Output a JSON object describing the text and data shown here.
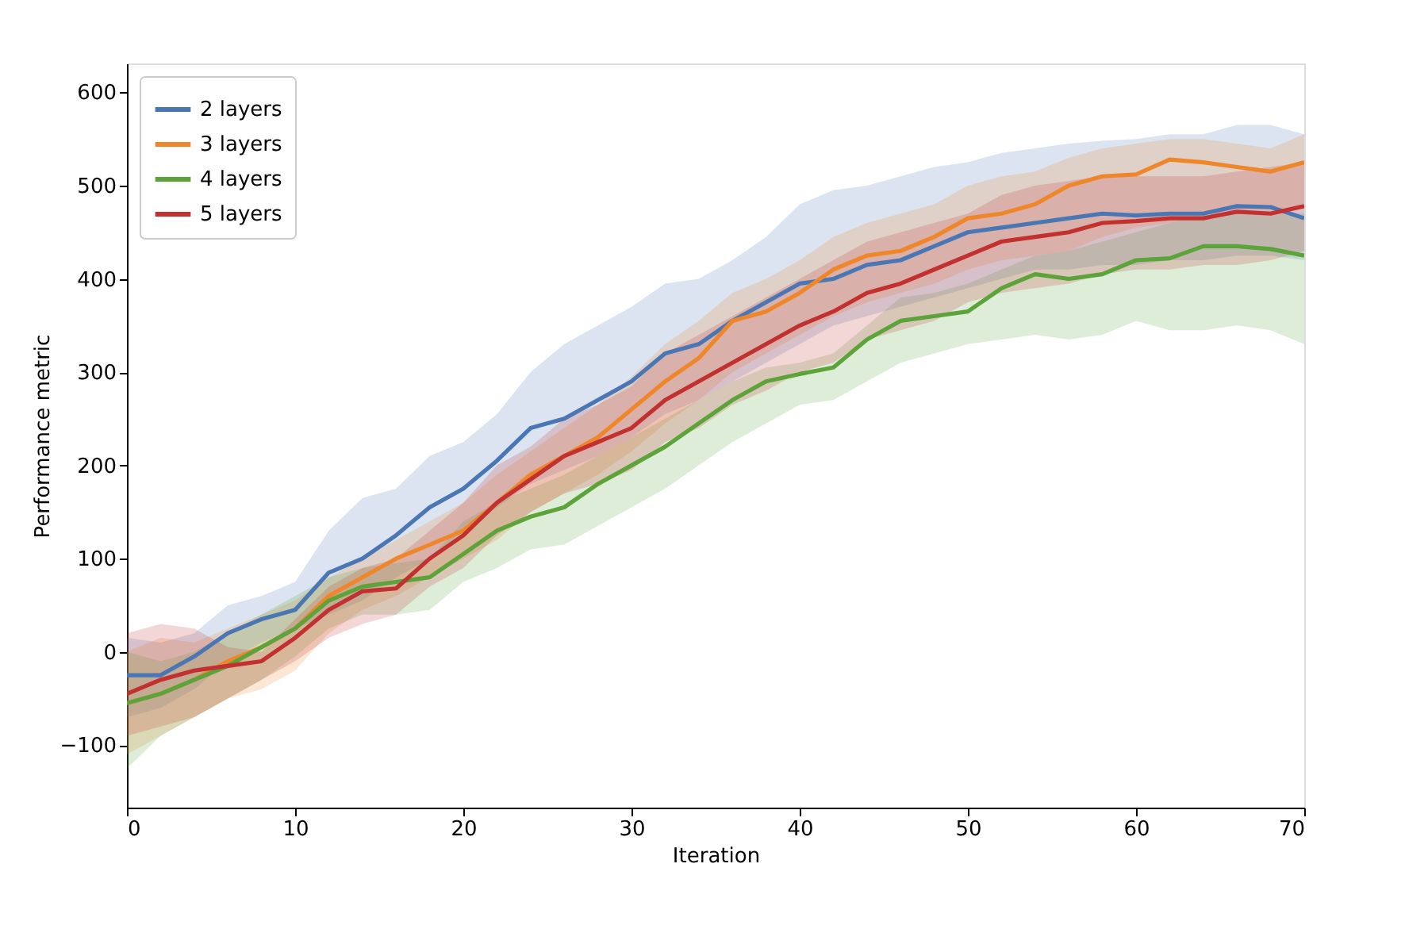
{
  "chart_data": {
    "type": "line",
    "xlabel": "Iteration",
    "ylabel": "Performance metric",
    "x": [
      0,
      2,
      4,
      6,
      8,
      10,
      12,
      14,
      16,
      18,
      20,
      22,
      24,
      26,
      28,
      30,
      32,
      34,
      36,
      38,
      40,
      42,
      44,
      46,
      48,
      50,
      52,
      54,
      56,
      58,
      60,
      62,
      64,
      66,
      68,
      70
    ],
    "xlim": [
      0,
      70
    ],
    "xticks": [
      0,
      10,
      20,
      30,
      40,
      50,
      60,
      70
    ],
    "ylim": [
      -167,
      631
    ],
    "yticks": [
      -100,
      0,
      100,
      200,
      300,
      400,
      500,
      600
    ],
    "grid": false,
    "legend": "top left",
    "series": [
      {
        "name": "2 layers",
        "color": "#4a77b4",
        "values": [
          -25,
          -25,
          -5,
          20,
          35,
          45,
          85,
          100,
          125,
          155,
          175,
          205,
          240,
          250,
          270,
          290,
          320,
          330,
          355,
          375,
          395,
          400,
          415,
          420,
          435,
          450,
          455,
          460,
          465,
          470,
          468,
          470,
          470,
          478,
          477,
          465
        ],
        "upper": [
          15,
          10,
          20,
          50,
          60,
          75,
          130,
          165,
          175,
          210,
          225,
          255,
          300,
          330,
          350,
          370,
          395,
          400,
          420,
          445,
          480,
          495,
          500,
          510,
          520,
          525,
          535,
          540,
          545,
          548,
          550,
          555,
          555,
          565,
          565,
          555
        ],
        "lower": [
          -70,
          -60,
          -40,
          -10,
          10,
          25,
          40,
          55,
          80,
          100,
          130,
          155,
          180,
          195,
          210,
          230,
          255,
          270,
          290,
          310,
          330,
          350,
          360,
          370,
          380,
          390,
          400,
          410,
          410,
          415,
          415,
          420,
          420,
          425,
          425,
          420
        ]
      },
      {
        "name": "3 layers",
        "color": "#ef862a",
        "values": [
          -55,
          -45,
          -30,
          -10,
          5,
          25,
          60,
          80,
          100,
          115,
          130,
          160,
          190,
          210,
          230,
          260,
          290,
          315,
          355,
          365,
          385,
          410,
          425,
          430,
          445,
          465,
          470,
          480,
          500,
          510,
          512,
          528,
          525,
          520,
          515,
          525
        ],
        "upper": [
          0,
          15,
          10,
          25,
          40,
          55,
          80,
          100,
          120,
          140,
          160,
          190,
          215,
          240,
          265,
          295,
          330,
          355,
          385,
          400,
          420,
          445,
          460,
          470,
          480,
          500,
          510,
          515,
          530,
          540,
          545,
          550,
          550,
          545,
          540,
          555
        ],
        "lower": [
          -110,
          -90,
          -70,
          -50,
          -40,
          -20,
          20,
          45,
          60,
          80,
          100,
          120,
          150,
          170,
          190,
          215,
          245,
          270,
          300,
          320,
          340,
          360,
          375,
          385,
          395,
          410,
          420,
          425,
          430,
          445,
          455,
          460,
          470,
          470,
          470,
          475
        ]
      },
      {
        "name": "4 layers",
        "color": "#5ca33a",
        "values": [
          -55,
          -45,
          -30,
          -15,
          5,
          25,
          55,
          70,
          75,
          80,
          105,
          130,
          145,
          155,
          180,
          200,
          220,
          245,
          270,
          290,
          298,
          305,
          335,
          355,
          360,
          365,
          390,
          405,
          400,
          405,
          420,
          422,
          435,
          435,
          432,
          425
        ],
        "upper": [
          0,
          -10,
          0,
          20,
          40,
          60,
          80,
          90,
          95,
          100,
          140,
          160,
          175,
          190,
          210,
          230,
          250,
          270,
          290,
          305,
          310,
          320,
          350,
          380,
          385,
          395,
          410,
          425,
          430,
          440,
          450,
          460,
          470,
          470,
          470,
          470
        ],
        "lower": [
          -125,
          -90,
          -70,
          -50,
          -30,
          -5,
          25,
          40,
          40,
          45,
          75,
          90,
          110,
          115,
          135,
          155,
          175,
          200,
          225,
          245,
          265,
          270,
          290,
          310,
          320,
          330,
          335,
          340,
          335,
          340,
          355,
          345,
          345,
          350,
          345,
          330
        ]
      },
      {
        "name": "5 layers",
        "color": "#c23030",
        "values": [
          -45,
          -30,
          -20,
          -15,
          -10,
          15,
          45,
          65,
          68,
          100,
          125,
          160,
          185,
          210,
          225,
          240,
          270,
          290,
          310,
          330,
          350,
          365,
          385,
          395,
          410,
          425,
          440,
          445,
          450,
          460,
          462,
          465,
          465,
          472,
          470,
          478
        ],
        "upper": [
          20,
          30,
          25,
          5,
          0,
          35,
          70,
          90,
          100,
          130,
          160,
          200,
          220,
          250,
          265,
          285,
          320,
          340,
          360,
          380,
          400,
          420,
          440,
          450,
          460,
          470,
          490,
          500,
          505,
          510,
          510,
          510,
          510,
          515,
          520,
          525
        ],
        "lower": [
          -90,
          -80,
          -70,
          -50,
          -30,
          -10,
          15,
          30,
          40,
          70,
          90,
          125,
          150,
          170,
          180,
          195,
          225,
          240,
          265,
          280,
          300,
          310,
          335,
          345,
          355,
          375,
          385,
          390,
          395,
          405,
          410,
          410,
          415,
          415,
          420,
          430
        ]
      }
    ]
  }
}
